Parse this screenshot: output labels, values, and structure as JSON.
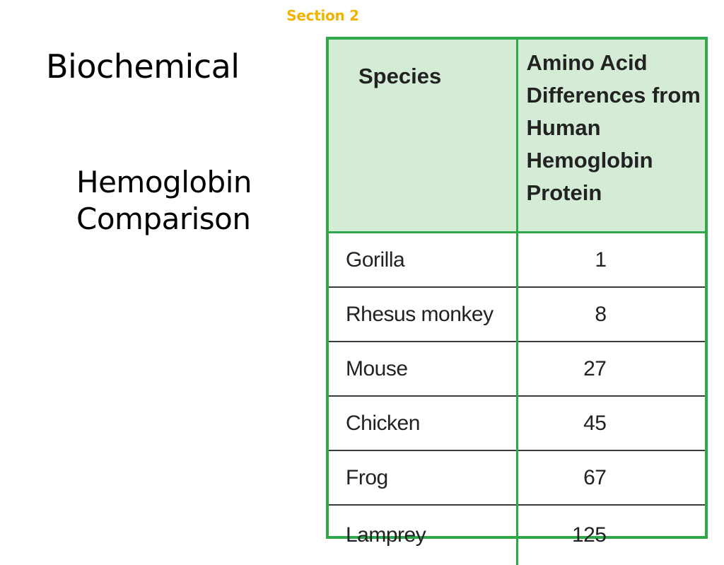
{
  "slide": {
    "section_label": "Section 2",
    "title": "Biochemical",
    "subtitle_line1": "Hemoglobin",
    "subtitle_line2": "Comparison"
  },
  "table": {
    "headers": {
      "species": "Species",
      "differences": "Amino Acid Differences from Human Hemoglobin Protein"
    },
    "rows": [
      {
        "species": "Gorilla",
        "differences": "1"
      },
      {
        "species": "Rhesus monkey",
        "differences": "8"
      },
      {
        "species": "Mouse",
        "differences": "27"
      },
      {
        "species": "Chicken",
        "differences": "45"
      },
      {
        "species": "Frog",
        "differences": "67"
      },
      {
        "species": "Lamprey",
        "differences": "125"
      }
    ]
  },
  "colors": {
    "section_label": "#f0b400",
    "table_border": "#2ea84a",
    "header_fill": "#d4ecd5",
    "row_divider": "#3a3a3a"
  }
}
